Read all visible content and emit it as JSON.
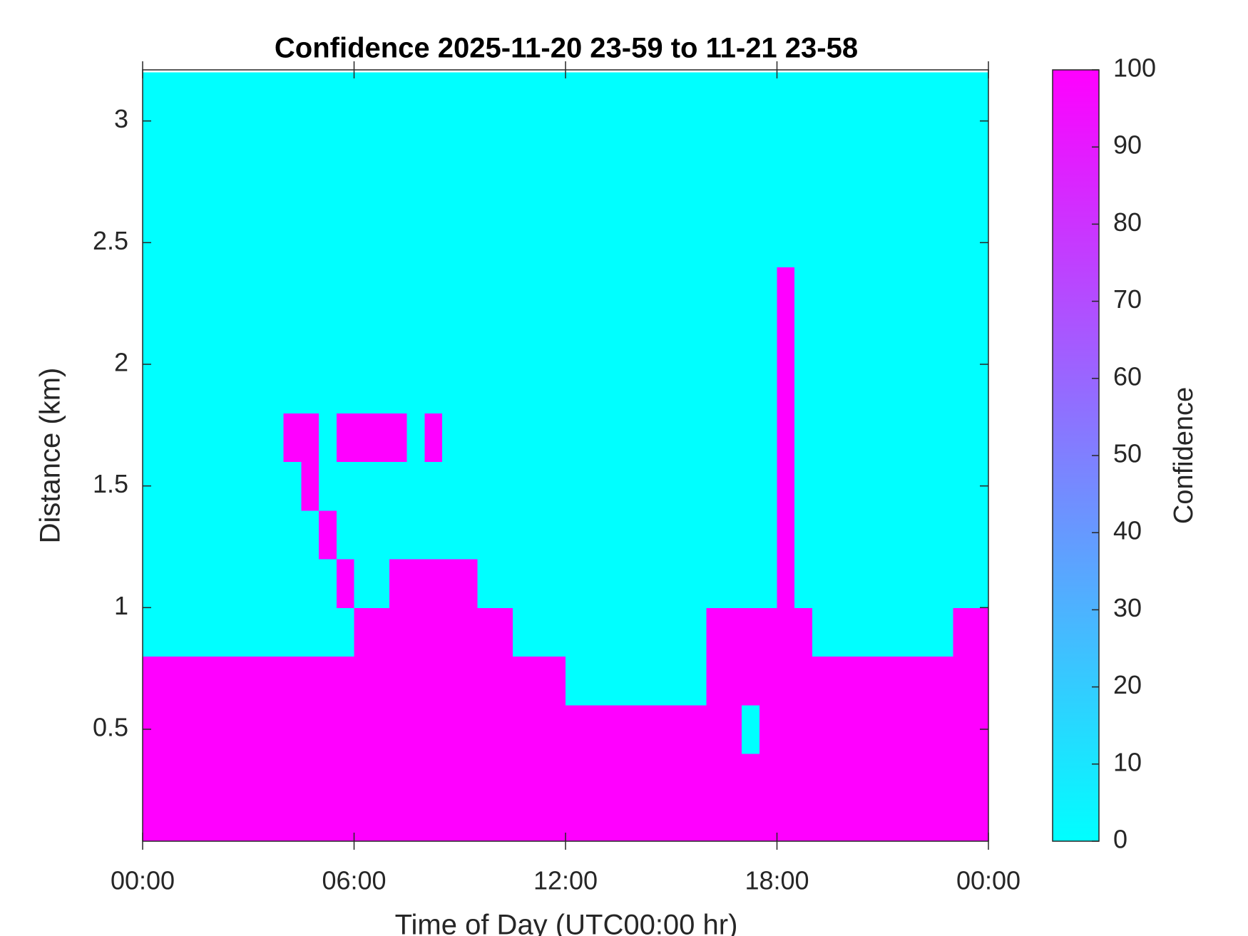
{
  "chart_data": {
    "type": "heatmap",
    "title": "Confidence 2025-11-20 23-59 to 11-21 23-58",
    "xlabel": "Time of Day (UTC00:00 hr)",
    "ylabel": "Distance (km)",
    "colorbar_label": "Confidence",
    "colormap": [
      "#00ffff",
      "#ff00ff"
    ],
    "clim": [
      0,
      100
    ],
    "cticks": [
      0,
      10,
      20,
      30,
      40,
      50,
      60,
      70,
      80,
      90,
      100
    ],
    "xlim": [
      0,
      24
    ],
    "xticks": [
      {
        "value": 0,
        "label": "00:00"
      },
      {
        "value": 6,
        "label": "06:00"
      },
      {
        "value": 12,
        "label": "12:00"
      },
      {
        "value": 18,
        "label": "18:00"
      },
      {
        "value": 24,
        "label": "00:00"
      }
    ],
    "ylim": [
      0.04,
      3.21
    ],
    "yticks": [
      0.5,
      1,
      1.5,
      2,
      2.5,
      3
    ],
    "x": [
      0.25,
      0.75,
      1.25,
      1.75,
      2.25,
      2.75,
      3.25,
      3.75,
      4.25,
      4.75,
      5.25,
      5.75,
      6.25,
      6.75,
      7.25,
      7.75,
      8.25,
      8.75,
      9.25,
      9.75,
      10.25,
      10.75,
      11.25,
      11.75,
      12.25,
      12.75,
      13.25,
      13.75,
      14.25,
      14.75,
      15.25,
      15.75,
      16.25,
      16.75,
      17.25,
      17.75,
      18.25,
      18.75,
      19.25,
      19.75,
      20.25,
      20.75,
      21.25,
      21.75,
      22.25,
      22.75,
      23.25,
      23.75
    ],
    "y": [
      0.1,
      0.3,
      0.5,
      0.7,
      0.9,
      1.1,
      1.3,
      1.5,
      1.7,
      1.9,
      2.1,
      2.3,
      2.5,
      2.7,
      2.9,
      3.1
    ],
    "z": [
      [
        100,
        100,
        100,
        100,
        100,
        100,
        100,
        100,
        100,
        100,
        100,
        100,
        100,
        100,
        100,
        100,
        100,
        100,
        100,
        100,
        100,
        100,
        100,
        100,
        100,
        100,
        100,
        100,
        100,
        100,
        100,
        100,
        100,
        100,
        100,
        100,
        100,
        100,
        100,
        100,
        100,
        100,
        100,
        100,
        100,
        100,
        100,
        100
      ],
      [
        100,
        100,
        100,
        100,
        100,
        100,
        100,
        100,
        100,
        100,
        100,
        100,
        100,
        100,
        100,
        100,
        100,
        100,
        100,
        100,
        100,
        100,
        100,
        100,
        100,
        100,
        100,
        100,
        100,
        100,
        100,
        100,
        100,
        100,
        100,
        100,
        100,
        100,
        100,
        100,
        100,
        100,
        100,
        100,
        100,
        100,
        100,
        100
      ],
      [
        100,
        100,
        100,
        100,
        100,
        100,
        100,
        100,
        100,
        100,
        100,
        100,
        100,
        100,
        100,
        100,
        100,
        100,
        100,
        100,
        100,
        100,
        100,
        100,
        100,
        100,
        100,
        100,
        100,
        100,
        100,
        100,
        100,
        100,
        0,
        100,
        100,
        100,
        100,
        100,
        100,
        100,
        100,
        100,
        100,
        100,
        100,
        100
      ],
      [
        100,
        100,
        100,
        100,
        100,
        100,
        100,
        100,
        100,
        100,
        100,
        100,
        100,
        100,
        100,
        100,
        100,
        100,
        100,
        100,
        100,
        100,
        100,
        100,
        0,
        0,
        0,
        0,
        0,
        0,
        0,
        0,
        100,
        100,
        100,
        100,
        100,
        100,
        100,
        100,
        100,
        100,
        100,
        100,
        100,
        100,
        100,
        100
      ],
      [
        0,
        0,
        0,
        0,
        0,
        0,
        0,
        0,
        0,
        0,
        0,
        0,
        100,
        100,
        100,
        100,
        100,
        100,
        100,
        100,
        100,
        0,
        0,
        0,
        0,
        0,
        0,
        0,
        0,
        0,
        0,
        0,
        100,
        100,
        100,
        100,
        100,
        100,
        0,
        0,
        0,
        0,
        0,
        0,
        0,
        0,
        100,
        100
      ],
      [
        0,
        0,
        0,
        0,
        0,
        0,
        0,
        0,
        0,
        0,
        0,
        100,
        0,
        0,
        100,
        100,
        100,
        100,
        100,
        0,
        0,
        0,
        0,
        0,
        0,
        0,
        0,
        0,
        0,
        0,
        0,
        0,
        0,
        0,
        0,
        0,
        100,
        0,
        0,
        0,
        0,
        0,
        0,
        0,
        0,
        0,
        0,
        0
      ],
      [
        0,
        0,
        0,
        0,
        0,
        0,
        0,
        0,
        0,
        0,
        100,
        0,
        0,
        0,
        0,
        0,
        0,
        0,
        0,
        0,
        0,
        0,
        0,
        0,
        0,
        0,
        0,
        0,
        0,
        0,
        0,
        0,
        0,
        0,
        0,
        0,
        100,
        0,
        0,
        0,
        0,
        0,
        0,
        0,
        0,
        0,
        0,
        0
      ],
      [
        0,
        0,
        0,
        0,
        0,
        0,
        0,
        0,
        0,
        100,
        0,
        0,
        0,
        0,
        0,
        0,
        0,
        0,
        0,
        0,
        0,
        0,
        0,
        0,
        0,
        0,
        0,
        0,
        0,
        0,
        0,
        0,
        0,
        0,
        0,
        0,
        100,
        0,
        0,
        0,
        0,
        0,
        0,
        0,
        0,
        0,
        0,
        0
      ],
      [
        0,
        0,
        0,
        0,
        0,
        0,
        0,
        0,
        100,
        100,
        0,
        100,
        100,
        100,
        100,
        0,
        100,
        0,
        0,
        0,
        0,
        0,
        0,
        0,
        0,
        0,
        0,
        0,
        0,
        0,
        0,
        0,
        0,
        0,
        0,
        0,
        100,
        0,
        0,
        0,
        0,
        0,
        0,
        0,
        0,
        0,
        0,
        0
      ],
      [
        0,
        0,
        0,
        0,
        0,
        0,
        0,
        0,
        0,
        0,
        0,
        0,
        0,
        0,
        0,
        0,
        0,
        0,
        0,
        0,
        0,
        0,
        0,
        0,
        0,
        0,
        0,
        0,
        0,
        0,
        0,
        0,
        0,
        0,
        0,
        0,
        100,
        0,
        0,
        0,
        0,
        0,
        0,
        0,
        0,
        0,
        0,
        0
      ],
      [
        0,
        0,
        0,
        0,
        0,
        0,
        0,
        0,
        0,
        0,
        0,
        0,
        0,
        0,
        0,
        0,
        0,
        0,
        0,
        0,
        0,
        0,
        0,
        0,
        0,
        0,
        0,
        0,
        0,
        0,
        0,
        0,
        0,
        0,
        0,
        0,
        100,
        0,
        0,
        0,
        0,
        0,
        0,
        0,
        0,
        0,
        0,
        0
      ],
      [
        0,
        0,
        0,
        0,
        0,
        0,
        0,
        0,
        0,
        0,
        0,
        0,
        0,
        0,
        0,
        0,
        0,
        0,
        0,
        0,
        0,
        0,
        0,
        0,
        0,
        0,
        0,
        0,
        0,
        0,
        0,
        0,
        0,
        0,
        0,
        0,
        100,
        0,
        0,
        0,
        0,
        0,
        0,
        0,
        0,
        0,
        0,
        0
      ],
      [
        0,
        0,
        0,
        0,
        0,
        0,
        0,
        0,
        0,
        0,
        0,
        0,
        0,
        0,
        0,
        0,
        0,
        0,
        0,
        0,
        0,
        0,
        0,
        0,
        0,
        0,
        0,
        0,
        0,
        0,
        0,
        0,
        0,
        0,
        0,
        0,
        0,
        0,
        0,
        0,
        0,
        0,
        0,
        0,
        0,
        0,
        0,
        0
      ],
      [
        0,
        0,
        0,
        0,
        0,
        0,
        0,
        0,
        0,
        0,
        0,
        0,
        0,
        0,
        0,
        0,
        0,
        0,
        0,
        0,
        0,
        0,
        0,
        0,
        0,
        0,
        0,
        0,
        0,
        0,
        0,
        0,
        0,
        0,
        0,
        0,
        0,
        0,
        0,
        0,
        0,
        0,
        0,
        0,
        0,
        0,
        0,
        0
      ],
      [
        0,
        0,
        0,
        0,
        0,
        0,
        0,
        0,
        0,
        0,
        0,
        0,
        0,
        0,
        0,
        0,
        0,
        0,
        0,
        0,
        0,
        0,
        0,
        0,
        0,
        0,
        0,
        0,
        0,
        0,
        0,
        0,
        0,
        0,
        0,
        0,
        0,
        0,
        0,
        0,
        0,
        0,
        0,
        0,
        0,
        0,
        0,
        0
      ],
      [
        0,
        0,
        0,
        0,
        0,
        0,
        0,
        0,
        0,
        0,
        0,
        0,
        0,
        0,
        0,
        0,
        0,
        0,
        0,
        0,
        0,
        0,
        0,
        0,
        0,
        0,
        0,
        0,
        0,
        0,
        0,
        0,
        0,
        0,
        0,
        0,
        0,
        0,
        0,
        0,
        0,
        0,
        0,
        0,
        0,
        0,
        0,
        0
      ]
    ]
  }
}
